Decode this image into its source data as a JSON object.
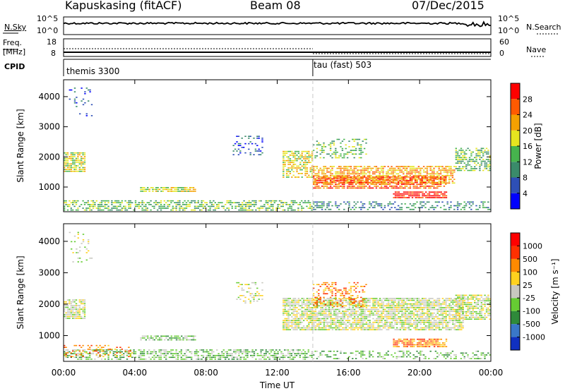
{
  "header": {
    "station": "Kapuskasing (fitACF)",
    "beam": "Beam 08",
    "date": "07/Dec/2015"
  },
  "side_labels": {
    "nsky": "N.Sky",
    "freq_line1": "Freq.",
    "freq_line2": "[MHz]",
    "cpid": "CPID",
    "nsearch": "N.Search",
    "nave": "Nave"
  },
  "top_panel_ticks": {
    "nsky_left": [
      "10^5",
      "10^0"
    ],
    "nsky_right": [
      "10^5",
      "10^0"
    ],
    "freq_left": [
      "18",
      "8"
    ],
    "nave_right": [
      "60",
      "0"
    ]
  },
  "cpid_segments": [
    {
      "label": "themis 3300",
      "start_hour": 0.0
    },
    {
      "label": "tau (fast) 503",
      "start_hour": 14.0
    }
  ],
  "chart_data": [
    {
      "type": "heatmap",
      "panel": "power",
      "xlabel": "",
      "ylabel": "Slant Range [km]",
      "xlim": [
        0,
        24
      ],
      "ylim": [
        180,
        4560
      ],
      "y_ticks": [
        1000,
        2000,
        3000,
        4000
      ],
      "x_ticks": [
        0,
        4,
        8,
        12,
        16,
        20,
        24
      ],
      "colorbar": {
        "label": "Power [dB]",
        "ticks": [
          "4",
          "8",
          "12",
          "16",
          "20",
          "24",
          "28"
        ],
        "colors": [
          "#0000ff",
          "#2e4fb6",
          "#3a8b6a",
          "#46b44d",
          "#e5e51f",
          "#f4a000",
          "#ff5a00",
          "#ff0000"
        ]
      },
      "scatter_regions": [
        {
          "x0": 0.0,
          "x1": 1.2,
          "y0": 1500,
          "y1": 2150,
          "level": 4,
          "density": 0.8
        },
        {
          "x0": 0.0,
          "x1": 14.0,
          "y0": 200,
          "y1": 560,
          "level": 3,
          "density": 0.55
        },
        {
          "x0": 4.3,
          "x1": 7.4,
          "y0": 800,
          "y1": 1000,
          "level": 4,
          "density": 0.8
        },
        {
          "x0": 12.3,
          "x1": 14.0,
          "y0": 1300,
          "y1": 2200,
          "level": 4,
          "density": 0.65
        },
        {
          "x0": 14.0,
          "x1": 22.0,
          "y0": 1100,
          "y1": 1700,
          "level": 5,
          "density": 0.7
        },
        {
          "x0": 14.0,
          "x1": 21.5,
          "y0": 950,
          "y1": 1350,
          "level": 6,
          "density": 0.75
        },
        {
          "x0": 18.5,
          "x1": 21.5,
          "y0": 600,
          "y1": 850,
          "level": 7,
          "density": 0.8
        },
        {
          "x0": 14.0,
          "x1": 17.0,
          "y0": 1900,
          "y1": 2600,
          "level": 3,
          "density": 0.3
        },
        {
          "x0": 22.0,
          "x1": 24.0,
          "y0": 1500,
          "y1": 2300,
          "level": 3,
          "density": 0.6
        },
        {
          "x0": 9.5,
          "x1": 11.2,
          "y0": 2000,
          "y1": 2700,
          "level": 1,
          "density": 0.25
        },
        {
          "x0": 0.3,
          "x1": 1.6,
          "y0": 3300,
          "y1": 4300,
          "level": 1,
          "density": 0.15
        },
        {
          "x0": 14.0,
          "x1": 24.0,
          "y0": 200,
          "y1": 520,
          "level": 2,
          "density": 0.35
        }
      ]
    },
    {
      "type": "heatmap",
      "panel": "velocity",
      "xlabel": "Time UT",
      "ylabel": "Slant Range [km]",
      "xlim": [
        0,
        24
      ],
      "ylim": [
        180,
        4560
      ],
      "y_ticks": [
        1000,
        2000,
        3000,
        4000
      ],
      "x_ticks": [
        0,
        4,
        8,
        12,
        16,
        20,
        24
      ],
      "x_tick_labels": [
        "00:00",
        "04:00",
        "08:00",
        "12:00",
        "16:00",
        "20:00",
        "00:00"
      ],
      "colorbar": {
        "label": "Velocity [m s⁻¹]",
        "ticks": [
          "1000",
          "500",
          "100",
          "25",
          "-25",
          "-100",
          "-500",
          "-1000"
        ],
        "colors": [
          "#1030c0",
          "#3a78c8",
          "#2f8a3a",
          "#66cc33",
          "#c8c8c0",
          "#ffd21e",
          "#ff8a00",
          "#ff3000",
          "#ff0000"
        ]
      },
      "scatter_regions": [
        {
          "x0": 0.0,
          "x1": 1.2,
          "y0": 1500,
          "y1": 2150,
          "level": 4,
          "density": 0.8
        },
        {
          "x0": 0.0,
          "x1": 14.0,
          "y0": 200,
          "y1": 560,
          "level": 3,
          "density": 0.55
        },
        {
          "x0": 4.3,
          "x1": 7.4,
          "y0": 800,
          "y1": 1000,
          "level": 3,
          "density": 0.7
        },
        {
          "x0": 12.3,
          "x1": 22.5,
          "y0": 1150,
          "y1": 2200,
          "level": 4,
          "density": 0.8
        },
        {
          "x0": 18.5,
          "x1": 21.5,
          "y0": 600,
          "y1": 900,
          "level": 6,
          "density": 0.8
        },
        {
          "x0": 14.0,
          "x1": 17.0,
          "y0": 1900,
          "y1": 2700,
          "level": 6,
          "density": 0.35
        },
        {
          "x0": 22.0,
          "x1": 24.0,
          "y0": 1500,
          "y1": 2300,
          "level": 4,
          "density": 0.7
        },
        {
          "x0": 9.5,
          "x1": 11.2,
          "y0": 2000,
          "y1": 2700,
          "level": 4,
          "density": 0.25
        },
        {
          "x0": 0.3,
          "x1": 1.6,
          "y0": 3300,
          "y1": 4300,
          "level": 4,
          "density": 0.15
        },
        {
          "x0": 14.0,
          "x1": 24.0,
          "y0": 200,
          "y1": 520,
          "level": 3,
          "density": 0.35
        },
        {
          "x0": 0.0,
          "x1": 4.0,
          "y0": 300,
          "y1": 700,
          "level": 6,
          "density": 0.3
        }
      ]
    }
  ]
}
